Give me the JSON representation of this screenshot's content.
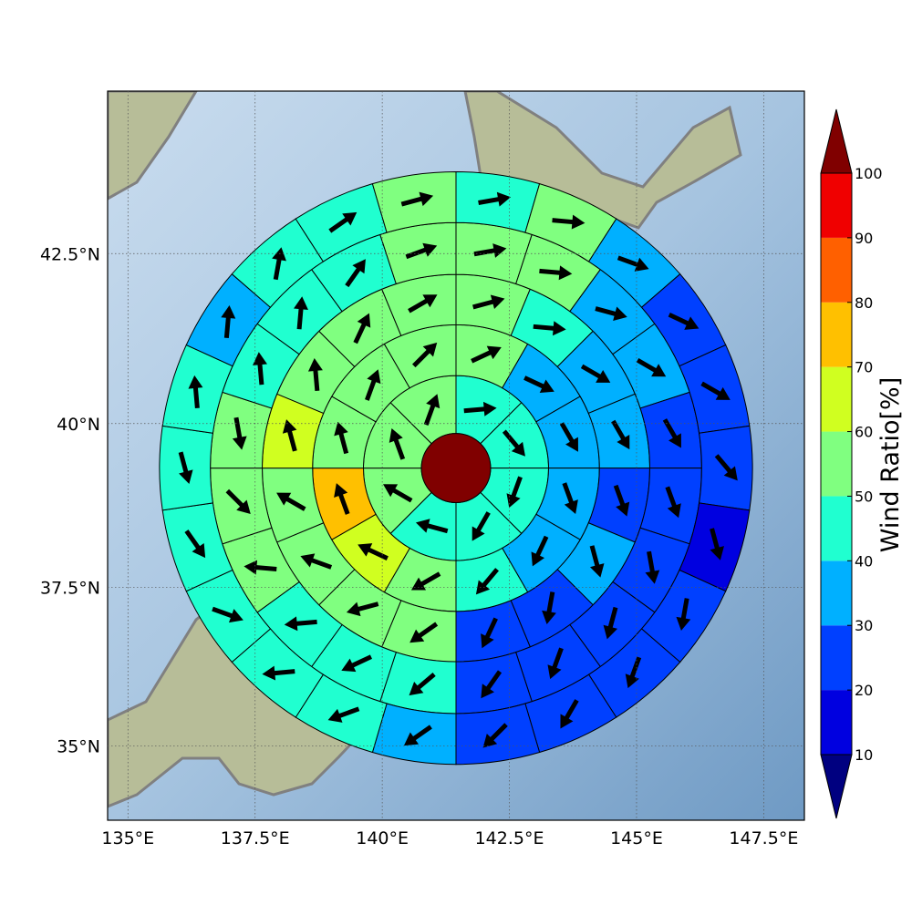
{
  "chart_data": {
    "type": "polar_grid_map",
    "projection": "mercator",
    "xlim": [
      134.6,
      148.3
    ],
    "ylim": [
      33.8,
      44.8
    ],
    "xticks": [
      {
        "value": 135,
        "label": "135°E"
      },
      {
        "value": 137.5,
        "label": "137.5°E"
      },
      {
        "value": 140,
        "label": "140°E"
      },
      {
        "value": 142.5,
        "label": "142.5°E"
      },
      {
        "value": 145,
        "label": "145°E"
      },
      {
        "value": 147.5,
        "label": "147.5°E"
      }
    ],
    "yticks": [
      {
        "value": 35,
        "label": "35°N"
      },
      {
        "value": 37.5,
        "label": "37.5°N"
      },
      {
        "value": 40,
        "label": "40°N"
      },
      {
        "value": 42.5,
        "label": "42.5°N"
      }
    ],
    "grid": true,
    "center": {
      "lon": 141.45,
      "lat": 39.33,
      "radius": 0.68,
      "color": "#800000"
    },
    "ring_edges": [
      0.68,
      1.82,
      2.82,
      3.81,
      4.83,
      5.83
    ],
    "rings": [
      {
        "values": [
          45,
          45,
          45,
          45,
          45,
          55,
          55,
          55
        ],
        "directions": [
          85,
          140,
          200,
          210,
          285,
          300,
          340,
          20
        ]
      },
      {
        "values": [
          55,
          35,
          35,
          35,
          35,
          45,
          55,
          65,
          75,
          55,
          55,
          55
        ],
        "directions": [
          65,
          115,
          150,
          160,
          205,
          220,
          240,
          295,
          340,
          345,
          20,
          45
        ]
      },
      {
        "values": [
          55,
          45,
          35,
          35,
          25,
          35,
          25,
          25,
          55,
          55,
          55,
          55,
          65,
          55,
          55,
          55
        ],
        "directions": [
          75,
          95,
          120,
          150,
          160,
          165,
          190,
          205,
          235,
          255,
          290,
          300,
          345,
          355,
          25,
          60
        ]
      },
      {
        "values": [
          55,
          55,
          35,
          35,
          25,
          25,
          25,
          25,
          25,
          25,
          45,
          45,
          45,
          55,
          55,
          55,
          45,
          45,
          45,
          55
        ],
        "directions": [
          80,
          95,
          105,
          120,
          150,
          160,
          170,
          195,
          200,
          215,
          230,
          245,
          265,
          275,
          135,
          170,
          355,
          5,
          35,
          70
        ]
      },
      {
        "values": [
          45,
          55,
          35,
          25,
          25,
          25,
          15,
          25,
          25,
          25,
          25,
          35,
          45,
          45,
          45,
          45,
          45,
          45,
          35,
          45,
          45,
          55
        ],
        "directions": [
          80,
          95,
          110,
          115,
          120,
          140,
          165,
          190,
          200,
          210,
          225,
          235,
          250,
          265,
          110,
          145,
          165,
          355,
          5,
          10,
          55,
          75
        ]
      }
    ],
    "colorbar": {
      "label": "Wind Ratio[%]",
      "bounds": [
        10,
        20,
        30,
        40,
        50,
        60,
        70,
        80,
        90,
        100
      ],
      "colors": [
        "#0000e0",
        "#0040ff",
        "#00b0ff",
        "#20ffd0",
        "#80ff80",
        "#d0ff20",
        "#ffc000",
        "#ff6000",
        "#f00000"
      ],
      "under_color": "#000080",
      "over_color": "#800000"
    }
  }
}
